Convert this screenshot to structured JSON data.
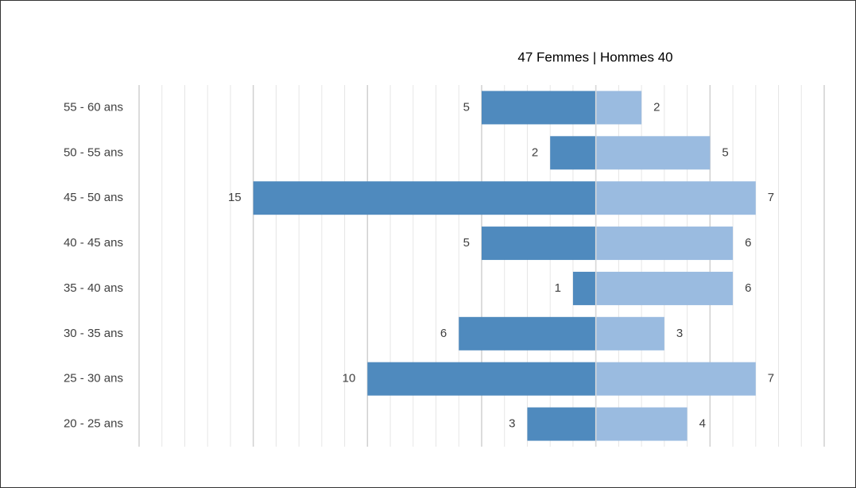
{
  "chart_data": {
    "type": "pyramid",
    "title": "47 Femmes | Hommes 40",
    "categories": [
      "55 - 60 ans",
      "50 - 55 ans",
      "45 - 50 ans",
      "40 - 45 ans",
      "35 - 40 ans",
      "30 - 35 ans",
      "25 - 30 ans",
      "20 - 25 ans"
    ],
    "series": [
      {
        "color": "#4f8abe",
        "side": "left",
        "values": [
          5,
          2,
          15,
          5,
          1,
          6,
          10,
          3
        ]
      },
      {
        "color": "#9abbe0",
        "side": "right",
        "values": [
          2,
          5,
          7,
          6,
          6,
          3,
          7,
          4
        ]
      }
    ],
    "xlim": [
      -20,
      10
    ],
    "xticks": [
      -20,
      -15,
      -10,
      -5,
      0,
      5,
      10
    ],
    "xminorticks": [
      -19,
      -18,
      -17,
      -16,
      -14,
      -13,
      -12,
      -11,
      -9,
      -8,
      -7,
      -6,
      -4,
      -3,
      -2,
      -1,
      1,
      2,
      3,
      4,
      6,
      7,
      8,
      9
    ],
    "grid": true
  }
}
